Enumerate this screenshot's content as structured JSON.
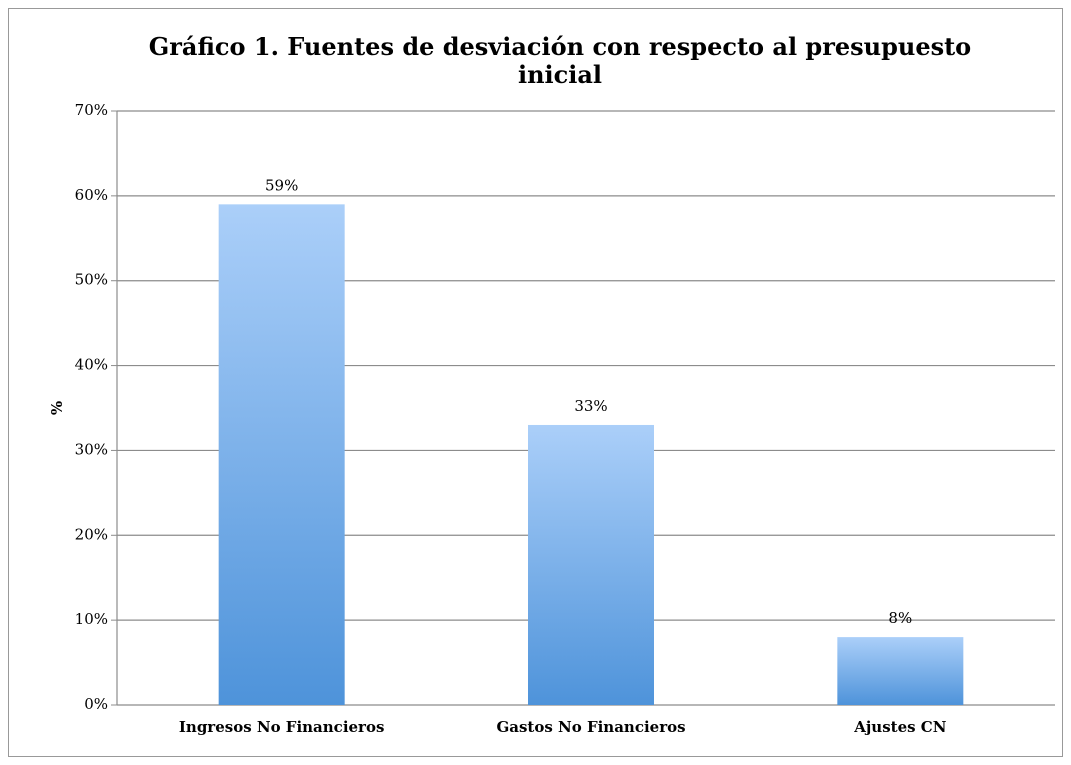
{
  "chart_data": {
    "type": "bar",
    "title": "Gráfico 1. Fuentes de desviación con respecto al presupuesto inicial",
    "y_label": "%",
    "categories": [
      "Ingresos No Financieros",
      "Gastos No Financieros",
      "Ajustes CN"
    ],
    "values": [
      59,
      33,
      8
    ],
    "value_labels": [
      "59%",
      "33%",
      "8%"
    ],
    "color": [
      "#abcff9",
      "#4e93da"
    ],
    "ylim": [
      0,
      70
    ],
    "yticks": [
      {
        "value": 0,
        "label": "0%"
      },
      {
        "value": 10,
        "label": "10%"
      },
      {
        "value": 20,
        "label": "20%"
      },
      {
        "value": 30,
        "label": "30%"
      },
      {
        "value": 40,
        "label": "40%"
      },
      {
        "value": 50,
        "label": "50%"
      },
      {
        "value": 60,
        "label": "60%"
      },
      {
        "value": 70,
        "label": "70%"
      }
    ],
    "grid": true
  }
}
